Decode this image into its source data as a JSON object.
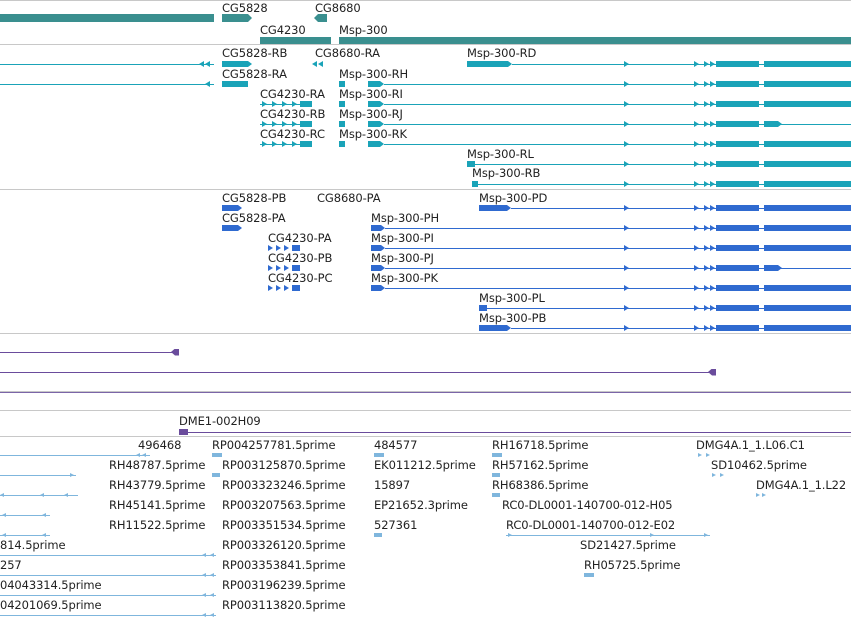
{
  "colors": {
    "gene": "#3a8f8f",
    "transcript": "#1aa3b8",
    "protein": "#2f6ad0",
    "clone": "#6a4c9c",
    "est": "#7fb6dd",
    "separator": "#c8c8c8"
  },
  "tracks": {
    "genes": {
      "labels": [
        "CG5828",
        "CG8680",
        "CG4230",
        "Msp-300"
      ]
    },
    "transcripts": {
      "labels": [
        "CG5828-RB",
        "CG8680-RA",
        "Msp-300-RD",
        "CG5828-RA",
        "Msp-300-RH",
        "CG4230-RA",
        "Msp-300-RI",
        "CG4230-RB",
        "Msp-300-RJ",
        "CG4230-RC",
        "Msp-300-RK",
        "Msp-300-RL",
        "Msp-300-RB"
      ]
    },
    "proteins": {
      "labels": [
        "CG5828-PB",
        "CG8680-PA",
        "Msp-300-PD",
        "CG5828-PA",
        "Msp-300-PH",
        "CG4230-PA",
        "Msp-300-PI",
        "CG4230-PB",
        "Msp-300-PJ",
        "CG4230-PC",
        "Msp-300-PK",
        "Msp-300-PL",
        "Msp-300-PB"
      ]
    },
    "clones": {
      "labels": [
        "DME1-002H09"
      ]
    },
    "ests": {
      "labels": [
        "496468",
        "RP004257781.5prime",
        "484577",
        "RH16718.5prime",
        "DMG4A.1_1.L06.C1",
        "RH48787.5prime",
        "RP003125870.5prime",
        "EK011212.5prime",
        "RH57162.5prime",
        "SD10462.5prime",
        "RH43779.5prime",
        "RP003323246.5prime",
        "15897",
        "RH68386.5prime",
        "DMG4A.1_1.L22",
        "RH45141.5prime",
        "RP003207563.5prime",
        "EP21652.3prime",
        "RC0-DL0001-140700-012-H05",
        "RH11522.5prime",
        "RP003351534.5prime",
        "527361",
        "RC0-DL0001-140700-012-E02",
        "814.5prime",
        "RP003326120.5prime",
        "SD21427.5prime",
        "257",
        "RP003353841.5prime",
        "RH05725.5prime",
        "04043314.5prime",
        "RP003196239.5prime",
        "04201069.5prime",
        "RP003113820.5prime"
      ]
    }
  }
}
